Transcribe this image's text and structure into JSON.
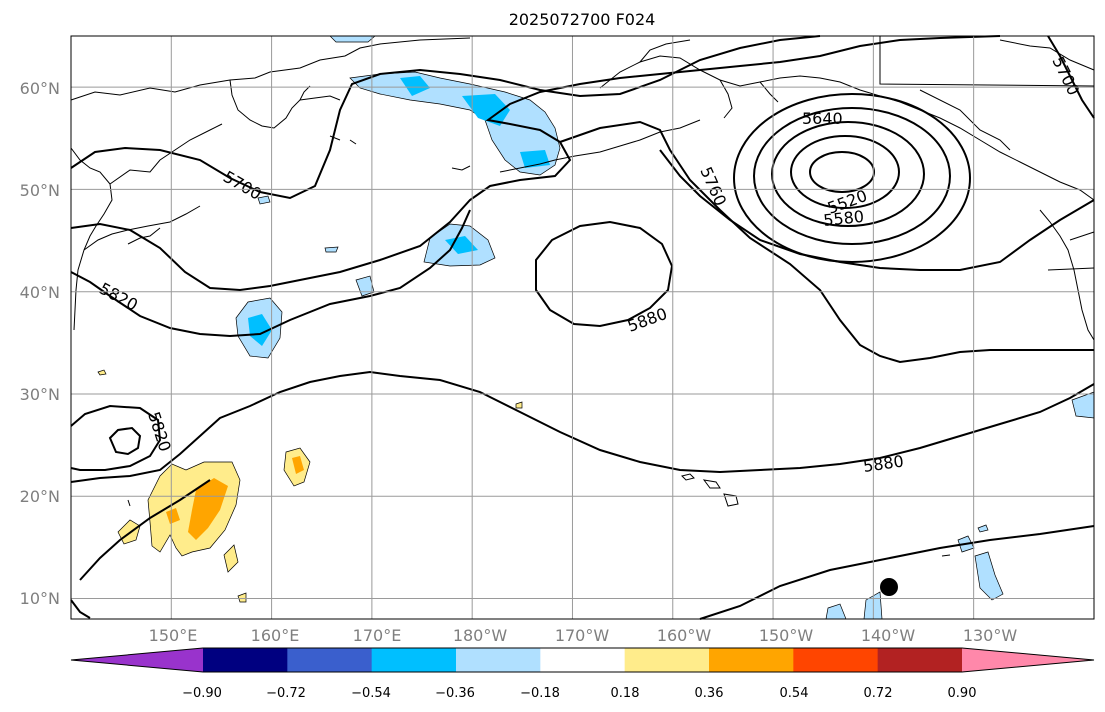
{
  "title": "2025072700 F024",
  "lat_labels": [
    "60°N",
    "50°N",
    "40°N",
    "30°N",
    "20°N",
    "10°N"
  ],
  "lon_labels": [
    "150°E",
    "160°E",
    "170°E",
    "180°W",
    "170°W",
    "160°W",
    "150°W",
    "140°W",
    "130°W"
  ],
  "contour_labels": [
    "5700",
    "5820",
    "5640",
    "5760",
    "5520",
    "5580",
    "5880",
    "5820",
    "5880",
    "5700"
  ],
  "colorbar": {
    "colors": [
      "#9933cc",
      "#000080",
      "#3a5fcd",
      "#00bfff",
      "#b0e0ff",
      "#ffffff",
      "#ffec8b",
      "#ffa500",
      "#ff4500",
      "#b22222",
      "#ff88aa"
    ],
    "ticks": [
      "−0.90",
      "−0.72",
      "−0.54",
      "−0.36",
      "−0.18",
      "0.18",
      "0.36",
      "0.54",
      "0.72",
      "0.90"
    ]
  },
  "map": {
    "extent_lon": [
      140,
      242
    ],
    "extent_lat": [
      8,
      65
    ],
    "grid_lat": [
      10,
      20,
      30,
      40,
      50,
      60
    ],
    "grid_lon": [
      150,
      160,
      170,
      180,
      190,
      200,
      210,
      220,
      230
    ]
  }
}
